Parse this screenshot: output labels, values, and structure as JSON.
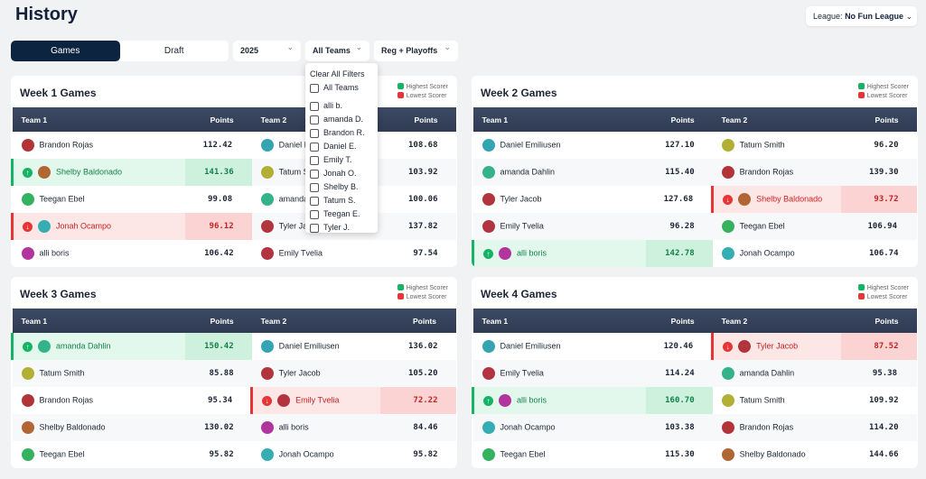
{
  "header": {
    "title": "History",
    "league_label": "League:",
    "league_name": "No Fun League"
  },
  "tabs": [
    "Games",
    "Draft"
  ],
  "filters": [
    "2025",
    "All Teams",
    "Reg + Playoffs"
  ],
  "dropdown": {
    "clear": "Clear All Filters",
    "options": [
      "All Teams",
      "alli b.",
      "amanda D.",
      "Brandon R.",
      "Daniel E.",
      "Emily T.",
      "Jonah O.",
      "Shelby B.",
      "Tatum S.",
      "Teegan E.",
      "Tyler J."
    ]
  },
  "legend": {
    "highest": "Highest Scorer",
    "lowest": "Lowest Scorer"
  },
  "columns": [
    "Team 1",
    "Points",
    "Team 2",
    "Points"
  ],
  "weeks": [
    {
      "title": "Week 1 Games",
      "games": [
        {
          "team1": "Brandon Rojas",
          "points1": "112.42",
          "team2": "Daniel Emiliusen",
          "points2": "108.68"
        },
        {
          "team1": "Shelby Baldonado",
          "points1": "141.36",
          "team2": "Tatum Smith",
          "points2": "103.92"
        },
        {
          "team1": "Teegan Ebel",
          "points1": "99.08",
          "team2": "amanda Dahlin",
          "points2": "100.06"
        },
        {
          "team1": "Jonah Ocampo",
          "points1": "96.12",
          "team2": "Tyler Jacob",
          "points2": "137.82"
        },
        {
          "team1": "alli boris",
          "points1": "106.42",
          "team2": "Emily Tvelia",
          "points2": "97.54"
        }
      ]
    },
    {
      "title": "Week 2 Games",
      "games": [
        {
          "team1": "Daniel Emiliusen",
          "points1": "127.10",
          "team2": "Tatum Smith",
          "points2": "96.20"
        },
        {
          "team1": "amanda Dahlin",
          "points1": "115.40",
          "team2": "Brandon Rojas",
          "points2": "139.30"
        },
        {
          "team1": "Tyler Jacob",
          "points1": "127.68",
          "team2": "Shelby Baldonado",
          "points2": "93.72"
        },
        {
          "team1": "Emily Tvelia",
          "points1": "96.28",
          "team2": "Teegan Ebel",
          "points2": "106.94"
        },
        {
          "team1": "alli boris",
          "points1": "142.78",
          "team2": "Jonah Ocampo",
          "points2": "106.74"
        }
      ]
    },
    {
      "title": "Week 3 Games",
      "games": [
        {
          "team1": "amanda Dahlin",
          "points1": "150.42",
          "team2": "Daniel Emiliusen",
          "points2": "136.02"
        },
        {
          "team1": "Tatum Smith",
          "points1": "85.88",
          "team2": "Tyler Jacob",
          "points2": "105.20"
        },
        {
          "team1": "Brandon Rojas",
          "points1": "95.34",
          "team2": "Emily Tvelia",
          "points2": "72.22"
        },
        {
          "team1": "Shelby Baldonado",
          "points1": "130.02",
          "team2": "alli boris",
          "points2": "84.46"
        },
        {
          "team1": "Teegan Ebel",
          "points1": "95.82",
          "team2": "Jonah Ocampo",
          "points2": "95.82"
        }
      ]
    },
    {
      "title": "Week 4 Games",
      "games": [
        {
          "team1": "Daniel Emiliusen",
          "points1": "120.46",
          "team2": "Tyler Jacob",
          "points2": "87.52"
        },
        {
          "team1": "Emily Tvelia",
          "points1": "114.24",
          "team2": "amanda Dahlin",
          "points2": "95.38"
        },
        {
          "team1": "alli boris",
          "points1": "160.70",
          "team2": "Tatum Smith",
          "points2": "109.92"
        },
        {
          "team1": "Jonah Ocampo",
          "points1": "103.38",
          "team2": "Brandon Rojas",
          "points2": "114.20"
        },
        {
          "team1": "Teegan Ebel",
          "points1": "115.30",
          "team2": "Shelby Baldonado",
          "points2": "144.66"
        }
      ]
    }
  ]
}
